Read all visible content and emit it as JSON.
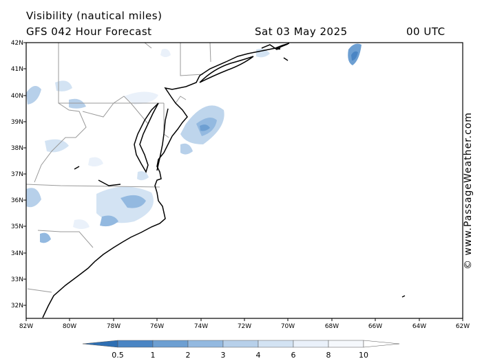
{
  "header": {
    "title": "Visibility (nautical miles)",
    "model": "GFS 042 Hour Forecast",
    "date": "Sat 03 May 2025",
    "time": "00 UTC"
  },
  "credit": "© www.PassageWeather.com",
  "axes": {
    "lat_labels": [
      "42N",
      "41N",
      "40N",
      "39N",
      "38N",
      "37N",
      "36N",
      "35N",
      "34N",
      "33N",
      "32N"
    ],
    "lon_labels": [
      "82W",
      "80W",
      "78W",
      "76W",
      "74W",
      "72W",
      "70W",
      "68W",
      "66W",
      "64W",
      "62W"
    ]
  },
  "legend": {
    "labels": [
      "0.5",
      "1",
      "2",
      "3",
      "4",
      "6",
      "8",
      "10"
    ],
    "colors": [
      "#2e6fb3",
      "#4a85c4",
      "#6d9fd2",
      "#93b9e0",
      "#b7d0ea",
      "#d3e3f3",
      "#eaf1fa",
      "#ffffff"
    ]
  },
  "colors": {
    "coast": "#000000",
    "border": "#999999",
    "frame": "#000000"
  }
}
